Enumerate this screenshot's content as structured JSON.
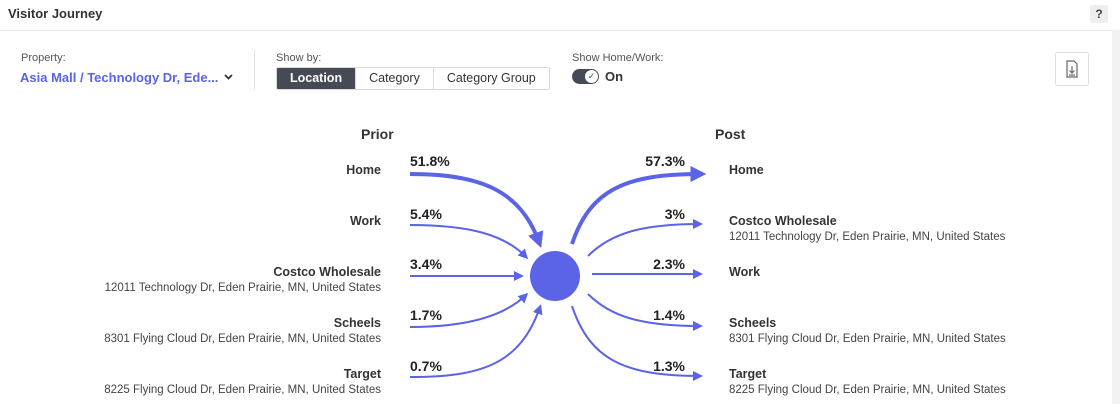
{
  "header": {
    "title": "Visitor Journey",
    "help": "?"
  },
  "controls": {
    "property_label": "Property:",
    "property_value": "Asia Mall / Technology Dr, Ede...",
    "show_by_label": "Show by:",
    "show_by_options": [
      "Location",
      "Category",
      "Category Group"
    ],
    "show_by_selected": "Location",
    "home_work_label": "Show Home/Work:",
    "home_work_value": "On"
  },
  "journey": {
    "prior_title": "Prior",
    "post_title": "Post",
    "prior": [
      {
        "name": "Home",
        "address": "",
        "percent": "51.8%",
        "value": 51.8
      },
      {
        "name": "Work",
        "address": "",
        "percent": "5.4%",
        "value": 5.4
      },
      {
        "name": "Costco Wholesale",
        "address": "12011 Technology Dr, Eden Prairie, MN, United States",
        "percent": "3.4%",
        "value": 3.4
      },
      {
        "name": "Scheels",
        "address": "8301 Flying Cloud Dr, Eden Prairie, MN, United States",
        "percent": "1.7%",
        "value": 1.7
      },
      {
        "name": "Target",
        "address": "8225 Flying Cloud Dr, Eden Prairie, MN, United States",
        "percent": "0.7%",
        "value": 0.7
      }
    ],
    "post": [
      {
        "name": "Home",
        "address": "",
        "percent": "57.3%",
        "value": 57.3
      },
      {
        "name": "Costco Wholesale",
        "address": "12011 Technology Dr, Eden Prairie, MN, United States",
        "percent": "3%",
        "value": 3
      },
      {
        "name": "Work",
        "address": "",
        "percent": "2.3%",
        "value": 2.3
      },
      {
        "name": "Scheels",
        "address": "8301 Flying Cloud Dr, Eden Prairie, MN, United States",
        "percent": "1.4%",
        "value": 1.4
      },
      {
        "name": "Target",
        "address": "8225 Flying Cloud Dr, Eden Prairie, MN, United States",
        "percent": "1.3%",
        "value": 1.3
      }
    ]
  },
  "colors": {
    "flow": "#5b63e6",
    "toggle": "#454a54",
    "active_tab": "#454a54",
    "property_link": "#5b63e6"
  },
  "icons": {
    "help": "question-icon",
    "dropdown": "chevron-down-icon",
    "toggle_knob": "check-icon",
    "download": "download-icon"
  }
}
